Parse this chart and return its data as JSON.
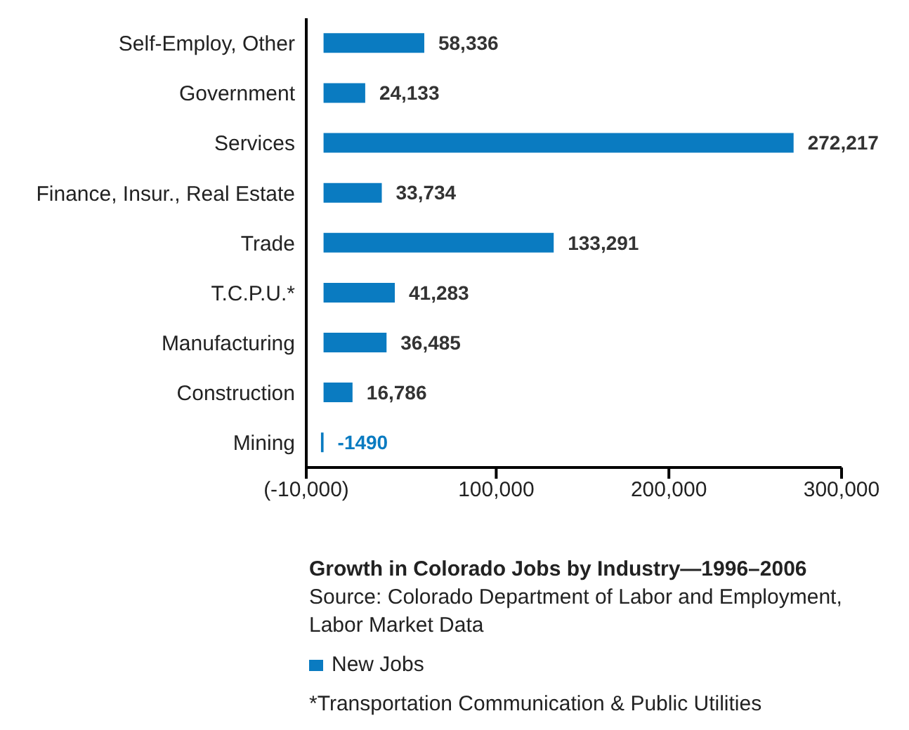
{
  "chart_data": {
    "type": "bar",
    "orientation": "horizontal",
    "title": "Growth in Colorado Jobs by Industry—1996–2006",
    "categories": [
      "Self-Employ, Other",
      "Government",
      "Services",
      "Finance, Insur., Real Estate",
      "Trade",
      "T.C.P.U.*",
      "Manufacturing",
      "Construction",
      "Mining"
    ],
    "series": [
      {
        "name": "New Jobs",
        "color": "#0a7bc1",
        "values": [
          58336,
          24133,
          272217,
          33734,
          133291,
          41283,
          36485,
          16786,
          -1490
        ],
        "value_labels": [
          "58,336",
          "24,133",
          "272,217",
          "33,734",
          "133,291",
          "41,283",
          "36,485",
          "16,786",
          "-1490"
        ]
      }
    ],
    "xlim": [
      -10000,
      300000
    ],
    "xticks": [
      {
        "value": -10000,
        "label": "(-10,000)"
      },
      {
        "value": 100000,
        "label": "100,000"
      },
      {
        "value": 200000,
        "label": "200,000"
      },
      {
        "value": 300000,
        "label": "300,000"
      }
    ],
    "legend": "bottom",
    "annotations": [
      "Source: Colorado Department of Labor and Employment, Labor Market Data",
      "*Transportation Communication & Public Utilities"
    ]
  }
}
